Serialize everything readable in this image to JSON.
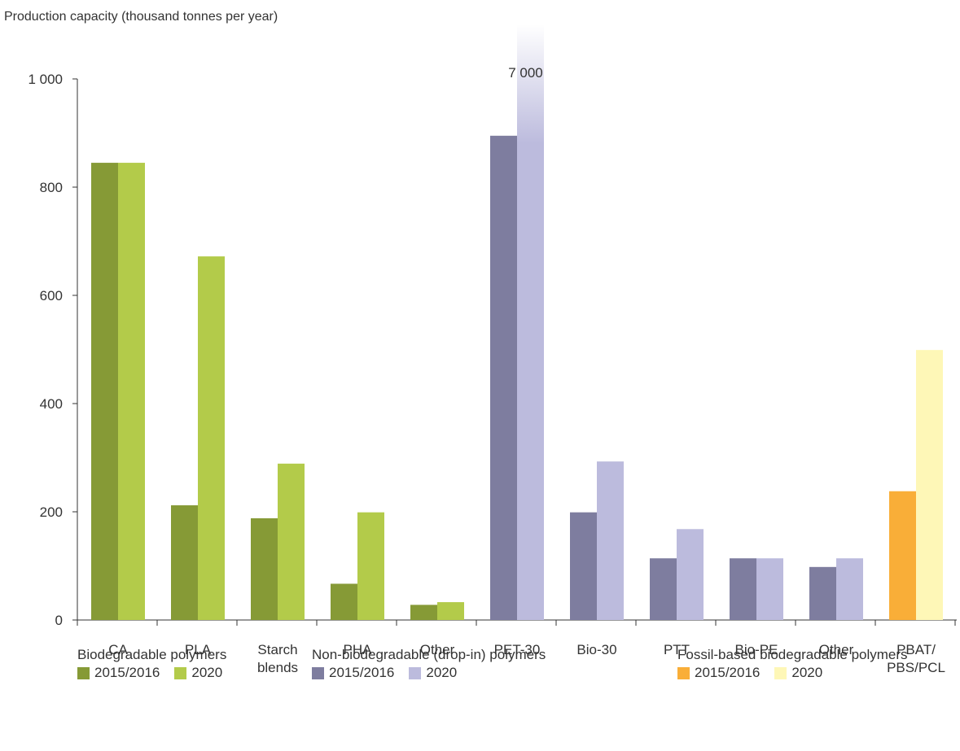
{
  "chart_data": {
    "type": "bar",
    "ylabel": "Production capacity (thousand tonnes per year)",
    "ylim": [
      0,
      1000
    ],
    "yticks": [
      {
        "value": 0,
        "label": "0"
      },
      {
        "value": 200,
        "label": "200"
      },
      {
        "value": 400,
        "label": "400"
      },
      {
        "value": 600,
        "label": "600"
      },
      {
        "value": 800,
        "label": "800"
      },
      {
        "value": 1000,
        "label": "1 000"
      }
    ],
    "categories": [
      {
        "label": [
          "CA"
        ],
        "group": 0,
        "values": [
          845,
          845
        ]
      },
      {
        "label": [
          "PLA"
        ],
        "group": 0,
        "values": [
          212,
          672
        ]
      },
      {
        "label": [
          "Starch",
          "blends"
        ],
        "group": 0,
        "values": [
          188,
          289
        ]
      },
      {
        "label": [
          "PHA"
        ],
        "group": 0,
        "values": [
          67,
          199
        ]
      },
      {
        "label": [
          "Other"
        ],
        "group": 0,
        "values": [
          28,
          33
        ]
      },
      {
        "label": [
          "PET-30"
        ],
        "group": 1,
        "values": [
          895,
          7000
        ]
      },
      {
        "label": [
          "Bio-30"
        ],
        "group": 1,
        "values": [
          199,
          293
        ]
      },
      {
        "label": [
          "PTT"
        ],
        "group": 1,
        "values": [
          114,
          168
        ]
      },
      {
        "label": [
          "Bio-PE"
        ],
        "group": 1,
        "values": [
          114,
          114
        ]
      },
      {
        "label": [
          "Other"
        ],
        "group": 1,
        "values": [
          98,
          114
        ]
      },
      {
        "label": [
          "PBAT/",
          "PBS/PCL"
        ],
        "group": 2,
        "values": [
          238,
          499
        ]
      }
    ],
    "annotations": [
      {
        "category_index": 5,
        "series_index": 1,
        "text": "7 000"
      }
    ],
    "groups": [
      {
        "name": "Biodegradable polymers",
        "colors": [
          "#869a36",
          "#b3cb4a"
        ]
      },
      {
        "name": "Non-biodegradable (drop-in) polymers",
        "colors": [
          "#7e7d9f",
          "#bcbbdd"
        ]
      },
      {
        "name": "Fossil-based biodegradable polymers",
        "colors": [
          "#f9ae38",
          "#fef7b7"
        ]
      }
    ],
    "series_labels": [
      "2015/2016",
      "2020"
    ],
    "legend_position": "bottom"
  }
}
